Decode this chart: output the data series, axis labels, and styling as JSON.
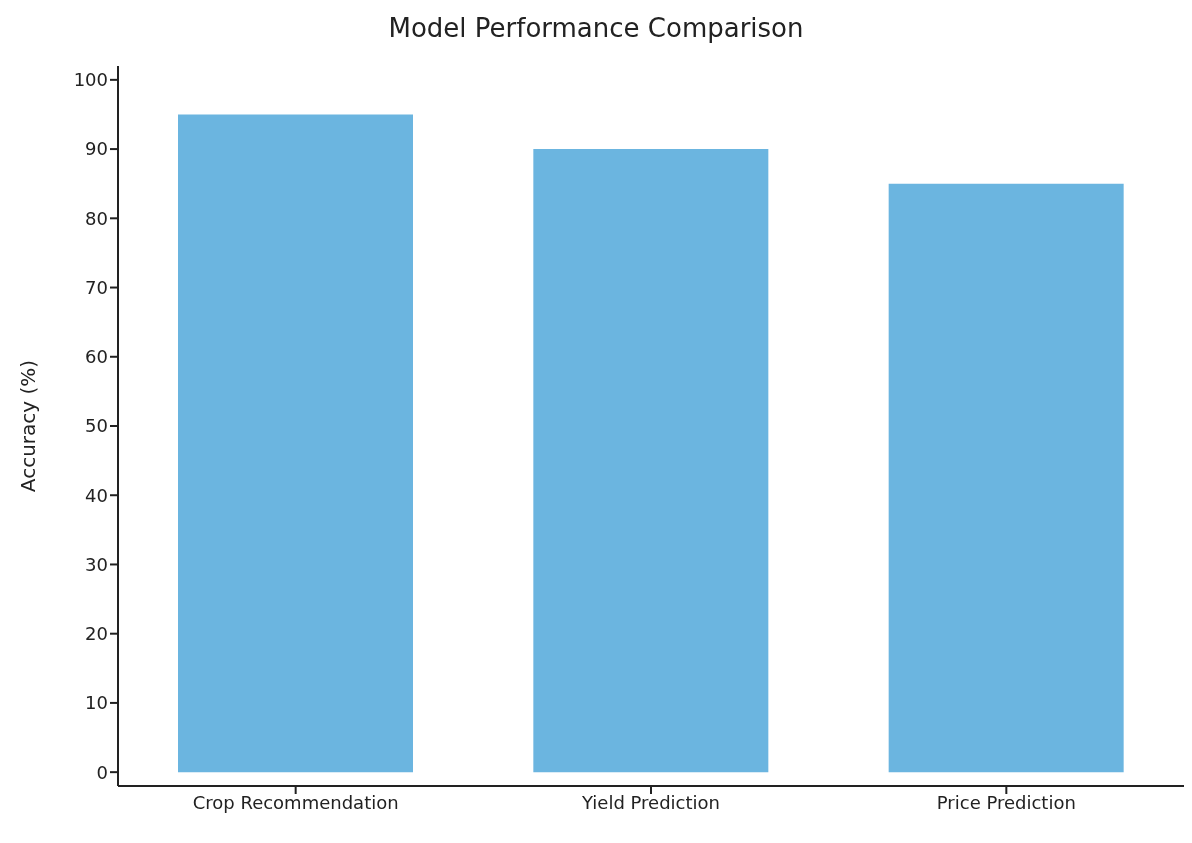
{
  "chart_data": {
    "type": "bar",
    "title": "Model Performance Comparison",
    "ylabel": "Accuracy (%)",
    "categories": [
      "Crop Recommendation",
      "Yield Prediction",
      "Price Prediction"
    ],
    "values": [
      95,
      90,
      85
    ],
    "color": "#6bb5e0",
    "ylim": [
      -2,
      102
    ],
    "yticks": [
      0,
      10,
      20,
      30,
      40,
      50,
      60,
      70,
      80,
      90,
      100
    ],
    "grid": false,
    "legend": false
  }
}
